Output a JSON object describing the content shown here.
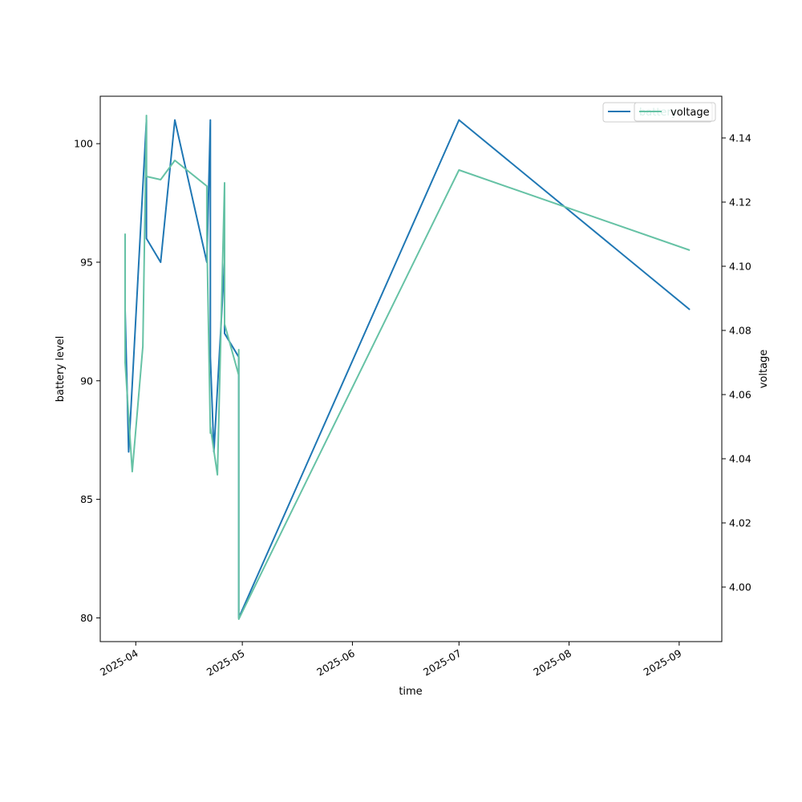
{
  "chart_data": {
    "type": "line",
    "xlabel": "time",
    "ylabel_left": "battery level",
    "ylabel_right": "voltage",
    "x_tick_labels": [
      "2025-04",
      "2025-05",
      "2025-06",
      "2025-07",
      "2025-08",
      "2025-09"
    ],
    "x_ticks": [
      "2025-04-01",
      "2025-05-01",
      "2025-06-01",
      "2025-07-01",
      "2025-08-01",
      "2025-09-01"
    ],
    "xlim": [
      "2025-03-22",
      "2025-09-13"
    ],
    "left_axis": {
      "ylim": [
        79,
        102
      ],
      "ticks": [
        80,
        85,
        90,
        95,
        100
      ]
    },
    "right_axis": {
      "ylim": [
        3.983,
        4.153
      ],
      "ticks": [
        "4.00",
        "4.02",
        "4.04",
        "4.06",
        "4.08",
        "4.10",
        "4.12",
        "4.14"
      ]
    },
    "grid": false,
    "legends": [
      {
        "label": "battery",
        "position": "top-right"
      },
      {
        "label": "voltage",
        "position": "top-right"
      }
    ],
    "series": [
      {
        "name": "battery",
        "axis": "left",
        "color": "#1f77b4",
        "x": [
          "2025-03-29",
          "2025-03-29",
          "2025-03-29",
          "2025-03-29",
          "2025-03-30",
          "2025-04-02",
          "2025-04-04",
          "2025-04-04",
          "2025-04-08",
          "2025-04-12",
          "2025-04-21",
          "2025-04-22",
          "2025-04-22",
          "2025-04-23",
          "2025-04-26",
          "2025-04-26",
          "2025-04-30",
          "2025-04-30",
          "2025-04-30",
          "2025-07-01",
          "2025-09-04"
        ],
        "y": [
          94,
          93,
          95.2,
          93,
          87,
          95.4,
          101,
          96,
          95,
          101,
          95,
          101,
          91,
          87,
          95,
          92,
          91,
          91,
          80,
          101,
          93
        ]
      },
      {
        "name": "voltage",
        "axis": "right",
        "color": "#66c2a5",
        "x": [
          "2025-03-29",
          "2025-03-29",
          "2025-03-29",
          "2025-03-29",
          "2025-03-31",
          "2025-04-03",
          "2025-04-04",
          "2025-04-04",
          "2025-04-08",
          "2025-04-12",
          "2025-04-21",
          "2025-04-21",
          "2025-04-22",
          "2025-04-22",
          "2025-04-24",
          "2025-04-26",
          "2025-04-26",
          "2025-04-30",
          "2025-04-30",
          "2025-04-30",
          "2025-07-01",
          "2025-09-04"
        ],
        "y": [
          4.11,
          4.09,
          4.11,
          4.07,
          4.036,
          4.075,
          4.147,
          4.128,
          4.127,
          4.133,
          4.125,
          4.11,
          4.048,
          4.05,
          4.035,
          4.126,
          4.082,
          4.066,
          4.074,
          3.99,
          4.13,
          4.105
        ]
      }
    ]
  }
}
